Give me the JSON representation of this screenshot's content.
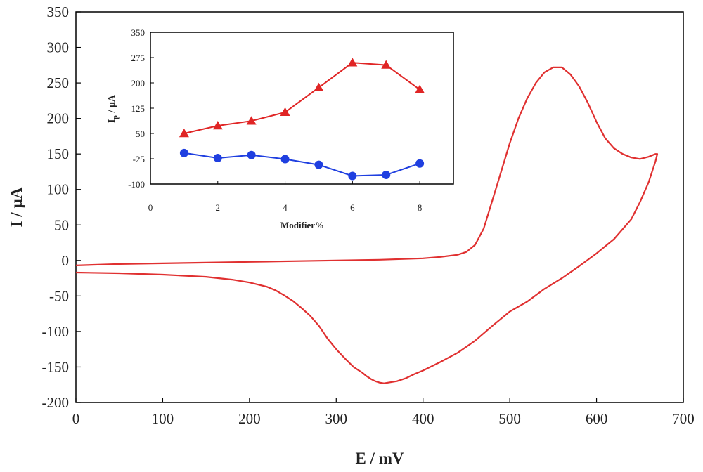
{
  "colors": {
    "cv_curve": "#e03030",
    "series_red": "#e02525",
    "series_blue": "#1f3fe0",
    "axis": "#000000"
  },
  "chart_data": [
    {
      "type": "line",
      "xlabel": "E / mV",
      "ylabel": "I / µA",
      "xlim": [
        0,
        700
      ],
      "ylim": [
        -200,
        350
      ],
      "xticks": [
        0,
        100,
        200,
        300,
        400,
        500,
        600,
        700
      ],
      "yticks": [
        -200,
        -150,
        -100,
        -50,
        0,
        50,
        100,
        150,
        200,
        250,
        300,
        350
      ],
      "grid": false,
      "series": [
        {
          "values_x": [
            0,
            50,
            100,
            150,
            200,
            250,
            300,
            350,
            400,
            420,
            440,
            450,
            460,
            470,
            480,
            490,
            500,
            510,
            520,
            530,
            540,
            550,
            560,
            570,
            580,
            590,
            600,
            610,
            620,
            630,
            640,
            650,
            660,
            668,
            670,
            668,
            660,
            650,
            640,
            620,
            600,
            580,
            560,
            540,
            520,
            500,
            480,
            460,
            440,
            420,
            400,
            390,
            380,
            370,
            360,
            355,
            350,
            345,
            340,
            335,
            330,
            320,
            310,
            300,
            290,
            280,
            270,
            260,
            250,
            240,
            230,
            220,
            200,
            180,
            150,
            100,
            50,
            0
          ],
          "values_y": [
            -7,
            -5,
            -4,
            -3,
            -2,
            -1,
            0,
            1,
            3,
            5,
            8,
            12,
            22,
            45,
            85,
            125,
            165,
            200,
            228,
            250,
            265,
            272,
            272,
            262,
            245,
            222,
            195,
            172,
            158,
            150,
            145,
            143,
            146,
            150,
            150,
            140,
            110,
            82,
            58,
            30,
            10,
            -8,
            -25,
            -40,
            -58,
            -72,
            -92,
            -113,
            -130,
            -143,
            -155,
            -160,
            -166,
            -170,
            -172,
            -173,
            -172,
            -170,
            -167,
            -163,
            -158,
            -150,
            -138,
            -125,
            -110,
            -92,
            -78,
            -67,
            -57,
            -49,
            -42,
            -37,
            -31,
            -27,
            -23,
            -20,
            -18,
            -17
          ]
        }
      ]
    },
    {
      "type": "line",
      "xlabel": "Modifier%",
      "ylabel_main": "I",
      "ylabel_sub": "p",
      "ylabel_rest": " / µA",
      "xlim": [
        0,
        9
      ],
      "ylim": [
        -100,
        350
      ],
      "xticks": [
        0,
        2,
        4,
        6,
        8
      ],
      "yticks": [
        -100,
        -25,
        50,
        125,
        200,
        275,
        350
      ],
      "grid": false,
      "x": [
        1,
        2,
        3,
        4,
        5,
        6,
        7,
        8
      ],
      "series": [
        {
          "marker": "triangle",
          "values": [
            50,
            73,
            87,
            113,
            186,
            260,
            253,
            180
          ]
        },
        {
          "marker": "circle",
          "values": [
            -8,
            -23,
            -14,
            -26,
            -43,
            -76,
            -73,
            -39
          ]
        }
      ]
    }
  ]
}
